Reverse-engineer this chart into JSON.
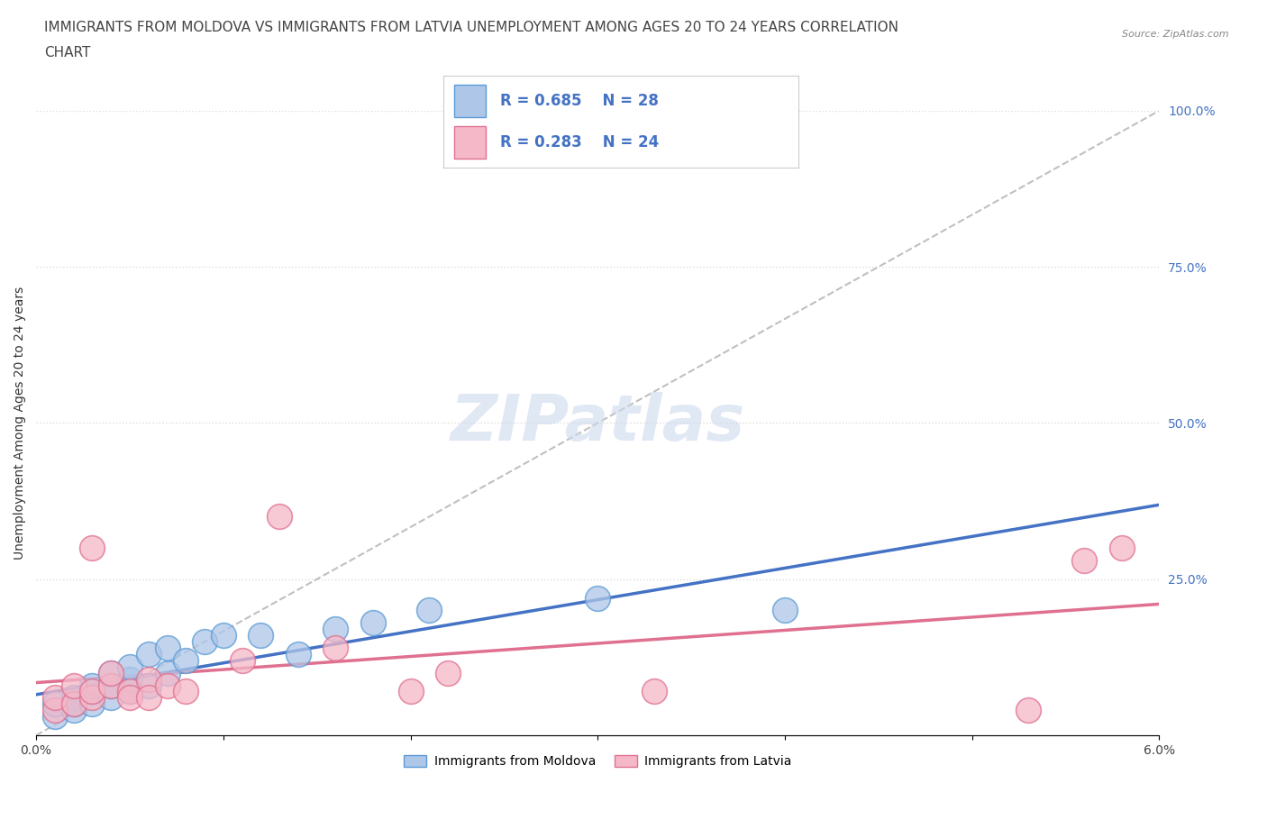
{
  "title_line1": "IMMIGRANTS FROM MOLDOVA VS IMMIGRANTS FROM LATVIA UNEMPLOYMENT AMONG AGES 20 TO 24 YEARS CORRELATION",
  "title_line2": "CHART",
  "source": "Source: ZipAtlas.com",
  "ylabel": "Unemployment Among Ages 20 to 24 years",
  "xlim": [
    0.0,
    0.06
  ],
  "ylim": [
    0.0,
    1.0
  ],
  "yticks_right": [
    0.0,
    0.25,
    0.5,
    0.75,
    1.0
  ],
  "ytick_right_labels": [
    "",
    "25.0%",
    "50.0%",
    "75.0%",
    "100.0%"
  ],
  "moldova_color": "#aec6e8",
  "moldova_edge": "#5b9bd5",
  "latvia_color": "#f4b8c8",
  "latvia_edge": "#e07090",
  "moldova_line_color": "#4472c4",
  "latvia_line_color": "#e07090",
  "diag_color": "#c0c0c0",
  "R_moldova": 0.685,
  "N_moldova": 28,
  "R_latvia": 0.283,
  "N_latvia": 24,
  "watermark": "ZIPatlas",
  "background_color": "#ffffff",
  "moldova_x": [
    0.001,
    0.001,
    0.002,
    0.002,
    0.002,
    0.003,
    0.003,
    0.003,
    0.004,
    0.004,
    0.004,
    0.005,
    0.005,
    0.005,
    0.006,
    0.006,
    0.007,
    0.007,
    0.008,
    0.009,
    0.01,
    0.012,
    0.014,
    0.016,
    0.018,
    0.021,
    0.03,
    0.04
  ],
  "moldova_y": [
    0.03,
    0.05,
    0.04,
    0.06,
    0.05,
    0.05,
    0.07,
    0.08,
    0.06,
    0.08,
    0.1,
    0.07,
    0.09,
    0.11,
    0.08,
    0.13,
    0.1,
    0.14,
    0.12,
    0.15,
    0.16,
    0.16,
    0.13,
    0.17,
    0.18,
    0.2,
    0.22,
    0.2
  ],
  "latvia_x": [
    0.001,
    0.001,
    0.002,
    0.002,
    0.003,
    0.003,
    0.003,
    0.004,
    0.004,
    0.005,
    0.005,
    0.006,
    0.006,
    0.007,
    0.008,
    0.011,
    0.013,
    0.016,
    0.02,
    0.022,
    0.033,
    0.053,
    0.056,
    0.058
  ],
  "latvia_y": [
    0.04,
    0.06,
    0.05,
    0.08,
    0.06,
    0.07,
    0.3,
    0.08,
    0.1,
    0.07,
    0.06,
    0.09,
    0.06,
    0.08,
    0.07,
    0.12,
    0.35,
    0.14,
    0.07,
    0.1,
    0.07,
    0.04,
    0.28,
    0.3
  ],
  "grid_color": "#dddddd",
  "title_fontsize": 11,
  "axis_label_fontsize": 10,
  "tick_fontsize": 10
}
